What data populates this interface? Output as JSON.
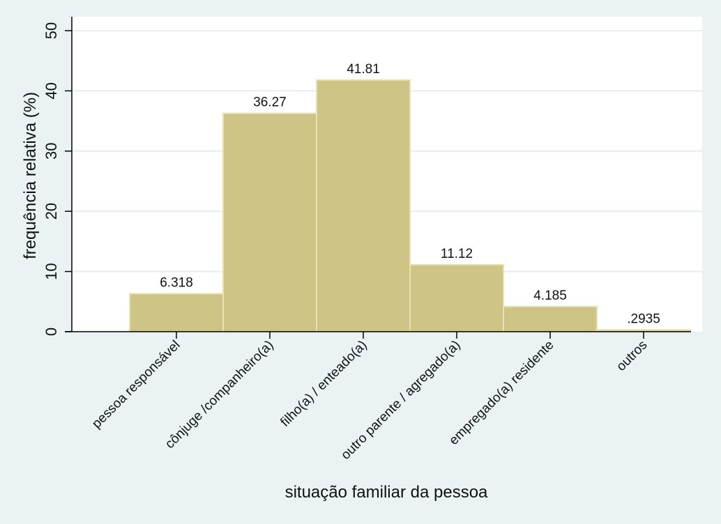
{
  "chart_data": {
    "type": "bar",
    "xlabel": "situação familiar da pessoa",
    "ylabel": "frequência relativa (%)",
    "categories": [
      "pessoa responsável",
      "cônjuge /companheiro(a)",
      "filho(a) / enteado(a)",
      "outro parente / agregado(a)",
      "empregado(a) residente",
      "outros"
    ],
    "values": [
      6.318,
      36.27,
      41.81,
      11.12,
      4.185,
      0.2935
    ],
    "value_labels": [
      "6.318",
      "36.27",
      "41.81",
      "11.12",
      "4.185",
      ".2935"
    ],
    "ylim": [
      0,
      50
    ],
    "yticks": [
      0,
      10,
      20,
      30,
      40,
      50
    ],
    "ytick_labels": [
      "0",
      "10",
      "20",
      "30",
      "40",
      "50"
    ],
    "grid": true,
    "colors": {
      "background": "#eaf2f3",
      "plot_background": "#ffffff",
      "bar_fill": "#cdc485",
      "bar_edge": "#e7e1b8",
      "grid": "#e6eeee",
      "axis": "#000000"
    }
  }
}
